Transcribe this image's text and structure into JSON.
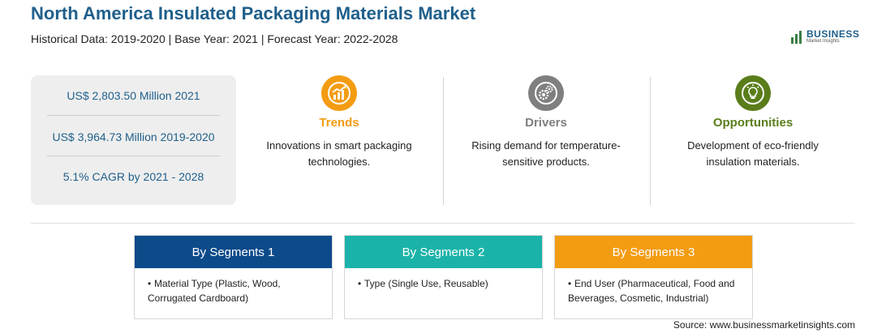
{
  "header": {
    "title": "North America Insulated Packaging Materials Market",
    "subtitle": "Historical Data: 2019-2020 | Base Year: 2021 | Forecast Year: 2022-2028"
  },
  "logo": {
    "main": "BUSINESS",
    "sub": "Market Insights"
  },
  "stats": [
    "US$ 2,803.50 Million 2021",
    "US$ 3,964.73 Million 2019-2020",
    "5.1% CAGR by 2021 - 2028"
  ],
  "columns": [
    {
      "title": "Trends",
      "text": "Innovations in smart packaging technologies.",
      "icon": "trend-chart-icon",
      "color": "#f39c12"
    },
    {
      "title": "Drivers",
      "text": "Rising demand for temperature-sensitive products.",
      "icon": "gears-icon",
      "color": "#7f7f7f"
    },
    {
      "title": "Opportunities",
      "text": "Development of eco-friendly insulation materials.",
      "icon": "lightbulb-icon",
      "color": "#5a7d1a"
    }
  ],
  "segments": [
    {
      "title": "By Segments 1",
      "color": "#0d4a8a",
      "item": "Material Type (Plastic, Wood, Corrugated Cardboard)"
    },
    {
      "title": "By Segments 2",
      "color": "#1bb3a9",
      "item": "Type (Single Use, Reusable)"
    },
    {
      "title": "By Segments 3",
      "color": "#f39c12",
      "item": "End User (Pharmaceutical, Food and Beverages, Cosmetic, Industrial)"
    }
  ],
  "source": "Source: www.businessmarketinsights.com"
}
